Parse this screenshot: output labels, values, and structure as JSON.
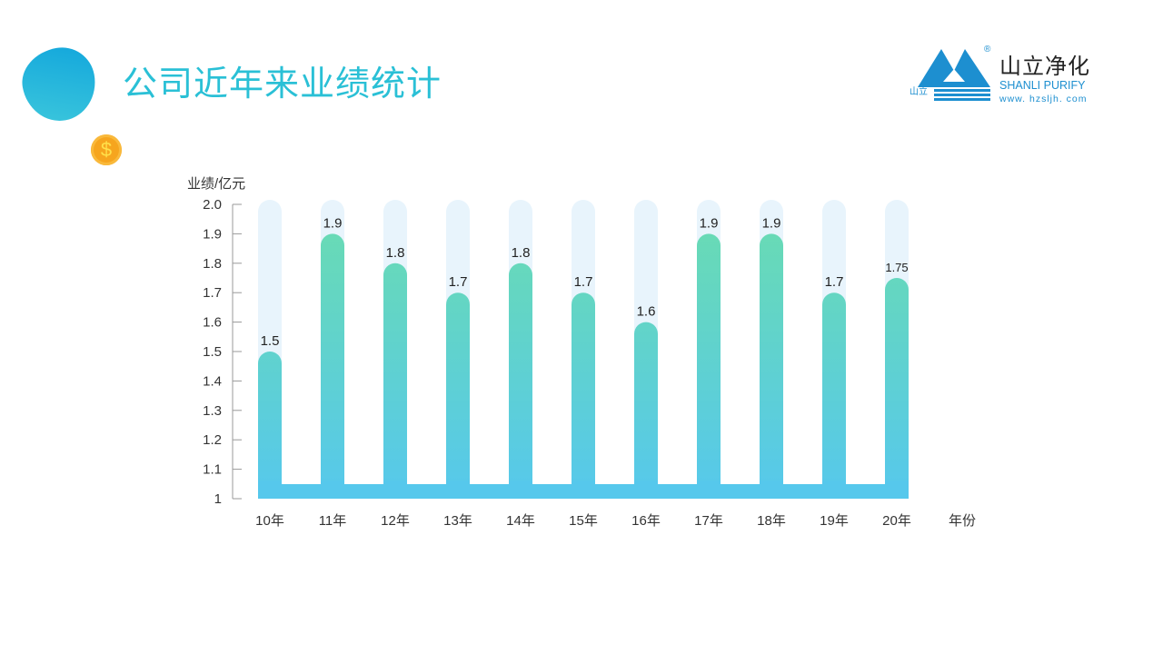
{
  "header": {
    "title": "公司近年来业绩统计"
  },
  "logo": {
    "cn": "山立净化",
    "en": "SHANLI PURIFY",
    "url": "www. hzsljh. com",
    "small": "山立",
    "reg": "®"
  },
  "icons": {
    "blob": "decorative-blob",
    "coin": "dollar-coin-icon",
    "coin_glyph": "$"
  },
  "colors": {
    "title": "#2ac0d6",
    "bar_top": "#6adcb0",
    "bar_bottom": "#56c8ec",
    "track": "#e8f4fc"
  },
  "chart_data": {
    "type": "bar",
    "ylabel": "业绩/亿元",
    "xlabel": "年份",
    "ylim": [
      1,
      2.0
    ],
    "yticks": [
      "1",
      "1.1",
      "1.2",
      "1.3",
      "1.4",
      "1.5",
      "1.6",
      "1.7",
      "1.8",
      "1.9",
      "2.0"
    ],
    "categories": [
      "10年",
      "11年",
      "12年",
      "13年",
      "14年",
      "15年",
      "16年",
      "17年",
      "18年",
      "19年",
      "20年"
    ],
    "values": [
      1.5,
      1.9,
      1.8,
      1.7,
      1.8,
      1.7,
      1.6,
      1.9,
      1.9,
      1.7,
      1.75
    ],
    "labels": [
      "1.5",
      "1.9",
      "1.8",
      "1.7",
      "1.8",
      "1.7",
      "1.6",
      "1.9",
      "1.9",
      "1.7",
      "1.75"
    ],
    "grid": false
  }
}
